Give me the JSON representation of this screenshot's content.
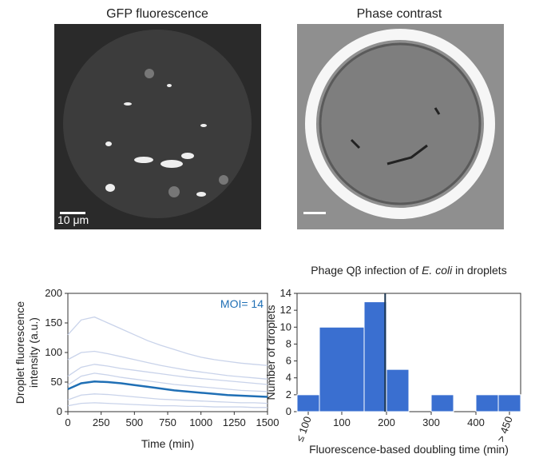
{
  "panels": [
    {
      "title": "GFP fluorescence",
      "scale_label": "10 μm"
    },
    {
      "title": "Phase contrast"
    }
  ],
  "chart_data": [
    {
      "type": "line",
      "annotation": "MOI= 14",
      "xlabel": "Time (min)",
      "ylabel": [
        "Droplet fluorescence",
        "intensity (a.u.)"
      ],
      "x": [
        0,
        100,
        200,
        300,
        400,
        500,
        600,
        700,
        800,
        900,
        1000,
        1100,
        1200,
        1300,
        1400,
        1500
      ],
      "xlim": [
        0,
        1500
      ],
      "ylim": [
        0,
        200
      ],
      "xticks": [
        0,
        250,
        500,
        750,
        1000,
        1250,
        1500
      ],
      "yticks": [
        0,
        50,
        100,
        150,
        200
      ],
      "series": [
        {
          "color": "#c9d3ea",
          "values": [
            130,
            155,
            160,
            150,
            140,
            130,
            120,
            112,
            105,
            98,
            92,
            88,
            85,
            82,
            80,
            78
          ]
        },
        {
          "color": "#c9d3ea",
          "values": [
            88,
            100,
            102,
            98,
            93,
            88,
            83,
            78,
            74,
            70,
            67,
            64,
            61,
            59,
            57,
            55
          ]
        },
        {
          "color": "#c9d3ea",
          "values": [
            60,
            75,
            80,
            77,
            73,
            70,
            67,
            64,
            61,
            58,
            56,
            54,
            52,
            50,
            48,
            46
          ]
        },
        {
          "color": "#c9d3ea",
          "values": [
            45,
            60,
            65,
            62,
            58,
            55,
            52,
            49,
            46,
            44,
            42,
            40,
            38,
            36,
            35,
            34
          ]
        },
        {
          "color": "#c9d3ea",
          "values": [
            20,
            28,
            30,
            29,
            27,
            25,
            23,
            21,
            20,
            19,
            18,
            17,
            16,
            15,
            15,
            14
          ]
        },
        {
          "color": "#c9d3ea",
          "values": [
            10,
            14,
            15,
            14,
            13,
            12,
            11,
            10,
            10,
            9,
            9,
            8,
            8,
            8,
            7,
            7
          ]
        },
        {
          "color": "#1f6fb5",
          "values": [
            38,
            48,
            51,
            50,
            48,
            45,
            42,
            39,
            36,
            34,
            32,
            30,
            28,
            27,
            26,
            25
          ]
        }
      ]
    },
    {
      "type": "histogram",
      "title": [
        "Phage Qβ infection of ",
        "E. coli",
        " in droplets"
      ],
      "xlabel": "Fluorescence-based doubling time (min)",
      "ylabel": "Number of droplets",
      "bins": [
        0,
        50,
        150,
        200,
        250,
        300,
        350,
        400,
        450,
        500
      ],
      "counts": [
        2,
        10,
        13,
        5,
        0,
        2,
        0,
        2,
        2
      ],
      "color": "#3a6fd0",
      "vline": 197,
      "vline_color": "#1a3550",
      "xlim": [
        0,
        500
      ],
      "ylim": [
        0,
        14
      ],
      "xticks": [
        {
          "value": 25,
          "label": "≤ 100"
        },
        100,
        200,
        300,
        400,
        {
          "value": 475,
          "label": "> 450"
        }
      ],
      "yticks": [
        0,
        2,
        4,
        6,
        8,
        10,
        12,
        14
      ]
    }
  ]
}
